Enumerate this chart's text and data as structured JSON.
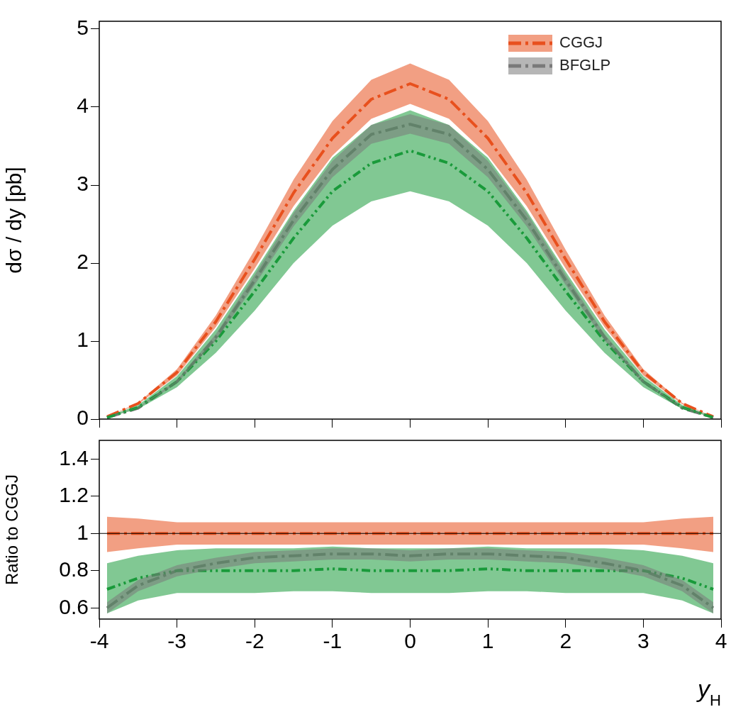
{
  "chart_data": [
    {
      "type": "line",
      "ylabel": "dσ / dy [pb]",
      "xlim": [
        -4,
        4
      ],
      "xticks": [
        -4,
        -3,
        -2,
        -1,
        0,
        1,
        2,
        3,
        4
      ],
      "ylim": [
        0,
        5.1
      ],
      "yticks": [
        0,
        1,
        2,
        3,
        4,
        5
      ],
      "tick_labels": "y",
      "legend": "top right",
      "x": [
        -3.9,
        -3.5,
        -3,
        -2.5,
        -2,
        -1.5,
        -1,
        -0.5,
        0,
        0.5,
        1,
        1.5,
        2,
        2.5,
        3,
        3.5,
        3.9
      ],
      "series": [
        {
          "name": "CGGJ",
          "color": "#e8501e",
          "line_style": "dashed",
          "values": [
            0.03,
            0.2,
            0.6,
            1.25,
            2.05,
            2.9,
            3.6,
            4.1,
            4.3,
            4.1,
            3.6,
            2.9,
            2.05,
            1.25,
            0.6,
            0.2,
            0.03
          ],
          "lower": [
            0.03,
            0.19,
            0.56,
            1.18,
            1.93,
            2.73,
            3.38,
            3.85,
            4.04,
            3.85,
            3.38,
            2.73,
            1.93,
            1.18,
            0.56,
            0.19,
            0.03
          ],
          "upper": [
            0.03,
            0.21,
            0.64,
            1.33,
            2.17,
            3.07,
            3.82,
            4.35,
            4.56,
            4.35,
            3.82,
            3.07,
            2.17,
            1.33,
            0.64,
            0.21,
            0.03
          ]
        },
        {
          "name": "BFGLP",
          "color": "#7a7a7a",
          "line_style": "dashed",
          "values": [
            0.02,
            0.14,
            0.48,
            1.05,
            1.78,
            2.55,
            3.2,
            3.65,
            3.78,
            3.65,
            3.2,
            2.55,
            1.78,
            1.05,
            0.48,
            0.14,
            0.02
          ],
          "lower": [
            0.02,
            0.14,
            0.46,
            1.01,
            1.72,
            2.47,
            3.1,
            3.53,
            3.66,
            3.53,
            3.1,
            2.47,
            1.72,
            1.01,
            0.46,
            0.14,
            0.02
          ],
          "upper": [
            0.02,
            0.15,
            0.5,
            1.09,
            1.85,
            2.64,
            3.31,
            3.77,
            3.91,
            3.77,
            3.31,
            2.64,
            1.85,
            1.09,
            0.5,
            0.15,
            0.02
          ]
        },
        {
          "color": "#1a9a3a",
          "line_style": "dotted",
          "values": [
            0.02,
            0.15,
            0.48,
            1.0,
            1.64,
            2.32,
            2.92,
            3.28,
            3.44,
            3.28,
            2.92,
            2.32,
            1.64,
            1.0,
            0.48,
            0.15,
            0.02
          ],
          "lower": [
            0.02,
            0.13,
            0.41,
            0.85,
            1.39,
            2.0,
            2.48,
            2.79,
            2.92,
            2.79,
            2.48,
            2.0,
            1.39,
            0.85,
            0.41,
            0.13,
            0.02
          ],
          "upper": [
            0.03,
            0.18,
            0.55,
            1.15,
            1.89,
            2.67,
            3.35,
            3.77,
            3.96,
            3.77,
            3.35,
            2.67,
            1.89,
            1.15,
            0.55,
            0.18,
            0.03
          ]
        }
      ]
    },
    {
      "type": "line",
      "ylabel": "Ratio to CGGJ",
      "xlabel": "y$_{H}$",
      "xlim": [
        -4,
        4
      ],
      "xticks": [
        -4,
        -3,
        -2,
        -1,
        0,
        1,
        2,
        3,
        4
      ],
      "ylim": [
        0.54,
        1.5
      ],
      "yticks": [
        0.6,
        0.8,
        1,
        1.2,
        1.4
      ],
      "ref_lines": [
        {
          "axis": "y",
          "value": 1,
          "color": "#000000"
        }
      ],
      "x": [
        -3.9,
        -3.5,
        -3,
        -2.5,
        -2,
        -1.5,
        -1,
        -0.5,
        0,
        0.5,
        1,
        1.5,
        2,
        2.5,
        3,
        3.5,
        3.9
      ],
      "series": [
        {
          "color": "#e8501e",
          "line_style": "dashed",
          "values": [
            1,
            1,
            1,
            1,
            1,
            1,
            1,
            1,
            1,
            1,
            1,
            1,
            1,
            1,
            1,
            1,
            1
          ],
          "lower": [
            0.9,
            0.92,
            0.94,
            0.94,
            0.94,
            0.94,
            0.94,
            0.94,
            0.94,
            0.94,
            0.94,
            0.94,
            0.94,
            0.94,
            0.94,
            0.92,
            0.9
          ],
          "upper": [
            1.09,
            1.08,
            1.06,
            1.06,
            1.06,
            1.06,
            1.06,
            1.06,
            1.06,
            1.06,
            1.06,
            1.06,
            1.06,
            1.06,
            1.06,
            1.08,
            1.09
          ]
        },
        {
          "color": "#7a7a7a",
          "line_style": "dashed",
          "values": [
            0.6,
            0.72,
            0.8,
            0.84,
            0.87,
            0.88,
            0.89,
            0.89,
            0.88,
            0.89,
            0.89,
            0.88,
            0.87,
            0.84,
            0.8,
            0.72,
            0.6
          ],
          "lower": [
            0.57,
            0.69,
            0.77,
            0.81,
            0.84,
            0.85,
            0.86,
            0.86,
            0.85,
            0.86,
            0.86,
            0.85,
            0.84,
            0.81,
            0.77,
            0.69,
            0.57
          ],
          "upper": [
            0.63,
            0.75,
            0.83,
            0.87,
            0.9,
            0.91,
            0.92,
            0.92,
            0.91,
            0.92,
            0.92,
            0.91,
            0.9,
            0.87,
            0.83,
            0.75,
            0.63
          ]
        },
        {
          "color": "#1a9a3a",
          "line_style": "dotted",
          "values": [
            0.7,
            0.76,
            0.8,
            0.8,
            0.8,
            0.8,
            0.81,
            0.8,
            0.8,
            0.8,
            0.81,
            0.8,
            0.8,
            0.8,
            0.8,
            0.76,
            0.7
          ],
          "lower": [
            0.57,
            0.64,
            0.68,
            0.68,
            0.68,
            0.69,
            0.69,
            0.68,
            0.68,
            0.68,
            0.69,
            0.69,
            0.68,
            0.68,
            0.68,
            0.64,
            0.57
          ],
          "upper": [
            0.84,
            0.88,
            0.91,
            0.92,
            0.92,
            0.92,
            0.93,
            0.92,
            0.92,
            0.92,
            0.93,
            0.92,
            0.92,
            0.92,
            0.91,
            0.88,
            0.84
          ]
        }
      ]
    }
  ]
}
